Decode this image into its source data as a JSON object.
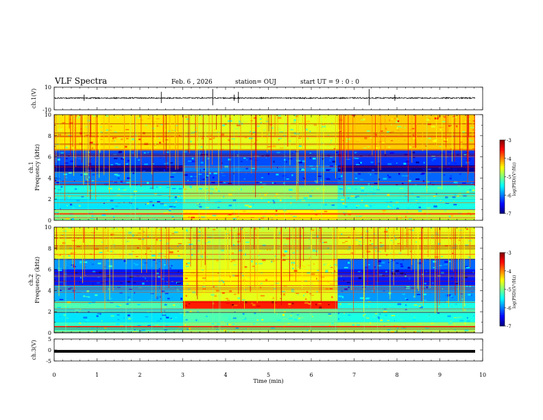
{
  "header": {
    "title": "VLF Spectra",
    "date": "Feb. 6  , 2026",
    "station": "station= OUJ",
    "start": "start  UT =   9 : 0  : 0"
  },
  "chart_data": [
    {
      "type": "line",
      "name": "ch1-waveform",
      "ylabel": "ch.1(V)",
      "ylim": [
        -10,
        10
      ],
      "yticks": [
        "10",
        "-10"
      ],
      "xlim": [
        0,
        10
      ],
      "baseline": 0.4,
      "noise_amplitude": 1.2,
      "spike_times": [
        0.7,
        2.5,
        3.7,
        4.2,
        4.3,
        7.35,
        7.95
      ]
    },
    {
      "type": "heatmap",
      "name": "ch1-spectrogram",
      "title": "ch.1 Frequency (kHz)",
      "ylabel": "Frequency (kHz)",
      "channel_label": "ch.1",
      "ylim": [
        0,
        10
      ],
      "yticks": [
        "0",
        "2",
        "4",
        "6",
        "8",
        "10"
      ],
      "xlim": [
        0,
        9.8
      ],
      "segments": [
        [
          0,
          3.0
        ],
        [
          3.0,
          6.6
        ],
        [
          6.6,
          9.8
        ]
      ],
      "colorbar": {
        "label": "log(PSD)(V²/Hz)",
        "min": -7,
        "max": -3,
        "ticks": [
          "-3",
          "-4",
          "-5",
          "-6",
          "-7"
        ]
      },
      "bands": [
        {
          "f0": 6.6,
          "f1": 10.0,
          "level": [
            -4.4,
            -4.6,
            -4.3
          ]
        },
        {
          "f0": 5.2,
          "f1": 6.6,
          "level": [
            -6.2,
            -6.2,
            -6.3
          ]
        },
        {
          "f0": 4.6,
          "f1": 5.2,
          "level": [
            -6.9,
            -6.0,
            -6.9
          ]
        },
        {
          "f0": 3.3,
          "f1": 4.6,
          "level": [
            -6.0,
            -6.2,
            -6.1
          ]
        },
        {
          "f0": 2.0,
          "f1": 3.3,
          "level": [
            -5.4,
            -4.9,
            -5.3
          ]
        },
        {
          "f0": 1.0,
          "f1": 2.0,
          "level": [
            -5.6,
            -5.3,
            -5.4
          ]
        },
        {
          "f0": 0.0,
          "f1": 1.0,
          "level": [
            -5.0,
            -4.5,
            -4.7
          ]
        }
      ]
    },
    {
      "type": "heatmap",
      "name": "ch2-spectrogram",
      "title": "ch.2 Frequency (kHz)",
      "ylabel": "Frequency (kHz)",
      "channel_label": "ch.2",
      "ylim": [
        0,
        10
      ],
      "yticks": [
        "0",
        "2",
        "4",
        "6",
        "8",
        "10"
      ],
      "xlim": [
        0,
        9.8
      ],
      "segments": [
        [
          0,
          3.0
        ],
        [
          3.0,
          6.6
        ],
        [
          6.6,
          9.8
        ]
      ],
      "colorbar": {
        "label": "log(PSD)(V²/Hz)",
        "min": -7,
        "max": -3,
        "ticks": [
          "-3",
          "-4",
          "-5",
          "-6",
          "-7"
        ]
      },
      "bands": [
        {
          "f0": 7.0,
          "f1": 10.0,
          "level": [
            -4.6,
            -4.7,
            -4.6
          ]
        },
        {
          "f0": 6.0,
          "f1": 7.0,
          "level": [
            -5.9,
            -4.6,
            -6.1
          ]
        },
        {
          "f0": 4.5,
          "f1": 6.0,
          "level": [
            -6.4,
            -4.5,
            -6.4
          ]
        },
        {
          "f0": 3.0,
          "f1": 4.5,
          "level": [
            -5.8,
            -4.6,
            -5.9
          ]
        },
        {
          "f0": 2.3,
          "f1": 3.0,
          "level": [
            -5.2,
            -3.6,
            -5.4
          ]
        },
        {
          "f0": 1.0,
          "f1": 2.3,
          "level": [
            -5.6,
            -5.2,
            -5.4
          ]
        },
        {
          "f0": 0.0,
          "f1": 1.0,
          "level": [
            -5.3,
            -5.0,
            -4.9
          ]
        }
      ]
    },
    {
      "type": "line",
      "name": "ch3-waveform",
      "ylabel": "ch.3(V)",
      "ylim": [
        -5,
        5
      ],
      "yticks": [
        "5",
        "0",
        "-5"
      ],
      "xlim": [
        0,
        10
      ],
      "baseline": -0.6,
      "noise_amplitude": 0.1,
      "spike_times": []
    }
  ],
  "x_axis": {
    "label": "Time (min)",
    "ticks": [
      "0",
      "1",
      "2",
      "3",
      "4",
      "5",
      "6",
      "7",
      "8",
      "9",
      "10"
    ]
  }
}
